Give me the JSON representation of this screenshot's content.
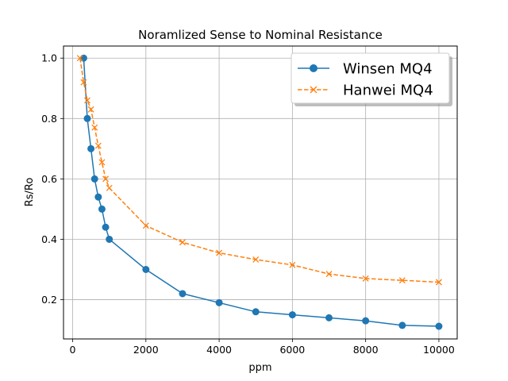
{
  "chart_data": {
    "type": "line",
    "title": "Noramlized Sense to Nominal Resistance",
    "xlabel": "ppm",
    "ylabel": "Rs/Ro",
    "xlim": [
      -250,
      10500
    ],
    "ylim": [
      0.07,
      1.04
    ],
    "xticks": [
      0,
      2000,
      4000,
      6000,
      8000,
      10000
    ],
    "yticks": [
      0.2,
      0.4,
      0.6,
      0.8,
      1.0
    ],
    "xtick_labels": [
      "0",
      "2000",
      "4000",
      "6000",
      "8000",
      "10000"
    ],
    "ytick_labels": [
      "0.2",
      "0.4",
      "0.6",
      "0.8",
      "1.0"
    ],
    "grid": true,
    "legend_position": "top-right",
    "series": [
      {
        "name": "Winsen MQ4",
        "color": "#1f77b4",
        "marker": "circle",
        "line_style": "solid",
        "x": [
          300,
          400,
          500,
          600,
          700,
          800,
          900,
          1000,
          2000,
          3000,
          4000,
          5000,
          6000,
          7000,
          8000,
          9000,
          10000
        ],
        "y": [
          1.0,
          0.8,
          0.7,
          0.6,
          0.54,
          0.5,
          0.44,
          0.4,
          0.3,
          0.22,
          0.19,
          0.16,
          0.15,
          0.14,
          0.13,
          0.115,
          0.112
        ]
      },
      {
        "name": "Hanwei MQ4",
        "color": "#ff7f0e",
        "marker": "x",
        "line_style": "dashed",
        "x": [
          200,
          300,
          400,
          500,
          600,
          700,
          800,
          900,
          1000,
          2000,
          3000,
          4000,
          5000,
          6000,
          7000,
          8000,
          9000,
          10000
        ],
        "y": [
          1.0,
          0.92,
          0.86,
          0.83,
          0.77,
          0.71,
          0.655,
          0.6,
          0.57,
          0.445,
          0.39,
          0.355,
          0.333,
          0.315,
          0.285,
          0.27,
          0.264,
          0.258
        ]
      }
    ]
  }
}
